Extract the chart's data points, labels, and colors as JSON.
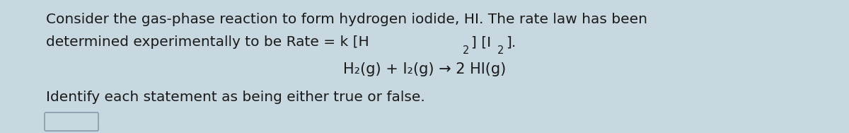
{
  "bg_color": "#c8d8e0",
  "text_color": "#1a1a1a",
  "line1": "Consider the gas-phase reaction to form hydrogen iodide, HI. The rate law has been",
  "line2_pre": "determined experimentally to be Rate = k [H",
  "line2_sub1": "2",
  "line2_mid": "] [I",
  "line2_sub2": "2",
  "line2_end": "].",
  "equation": "H₂(g) + I₂(g) → 2 HI(g)",
  "line3": "Identify each statement as being either true or false.",
  "font_size_main": 14.5,
  "font_size_eq": 15.0,
  "font_size_sub": 10.5,
  "fig_width": 12.0,
  "fig_height": 1.88,
  "dpi": 100
}
